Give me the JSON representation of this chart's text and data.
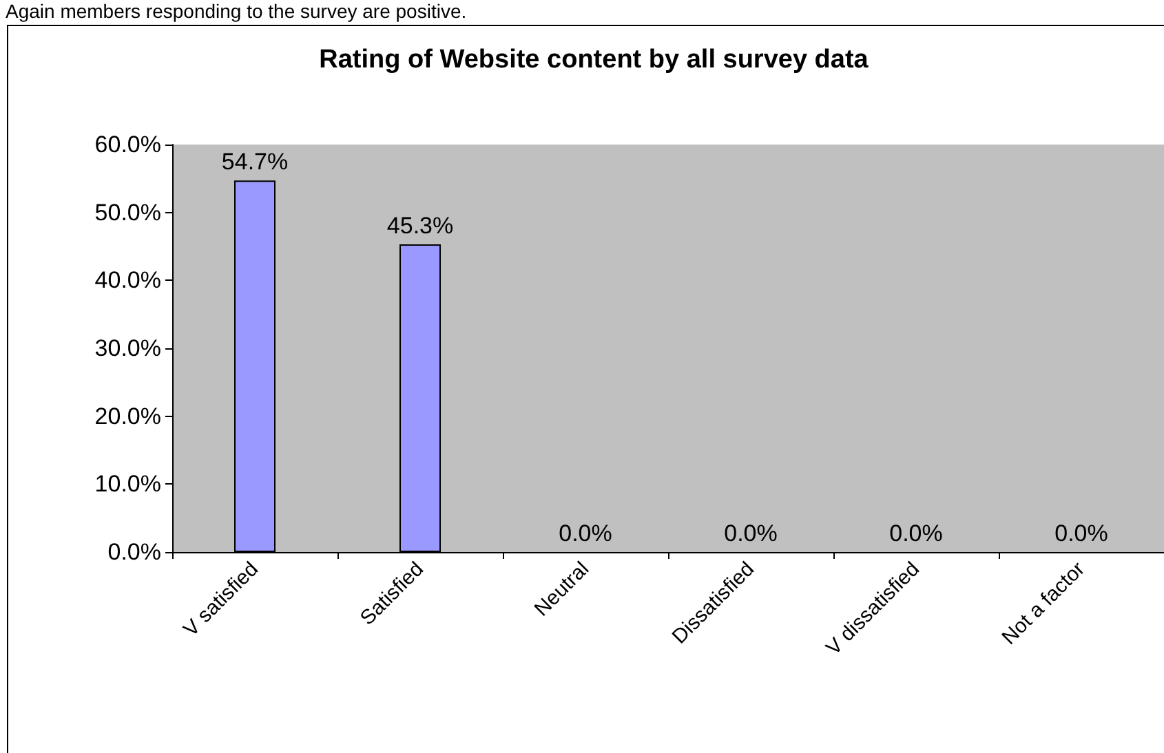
{
  "chart_data": {
    "type": "bar",
    "title": "Rating of Website content by all survey data",
    "annotations": [
      "Again members responding to the survey are positive."
    ],
    "categories": [
      "V satisfied",
      "Satisfied",
      "Neutral",
      "Dissatisfied",
      "V dissatisfied",
      "Not a factor"
    ],
    "values": [
      54.7,
      45.3,
      0.0,
      0.0,
      0.0,
      0.0
    ],
    "value_labels": [
      "54.7%",
      "45.3%",
      "0.0%",
      "0.0%",
      "0.0%",
      "0.0%"
    ],
    "color": "#9999ff",
    "ylim": [
      0,
      60
    ],
    "yticks": [
      {
        "value": 0,
        "label": "0.0%"
      },
      {
        "value": 10,
        "label": "10.0%"
      },
      {
        "value": 20,
        "label": "20.0%"
      },
      {
        "value": 30,
        "label": "30.0%"
      },
      {
        "value": 40,
        "label": "40.0%"
      },
      {
        "value": 50,
        "label": "50.0%"
      },
      {
        "value": 60,
        "label": "60.0%"
      }
    ],
    "grid": false
  }
}
